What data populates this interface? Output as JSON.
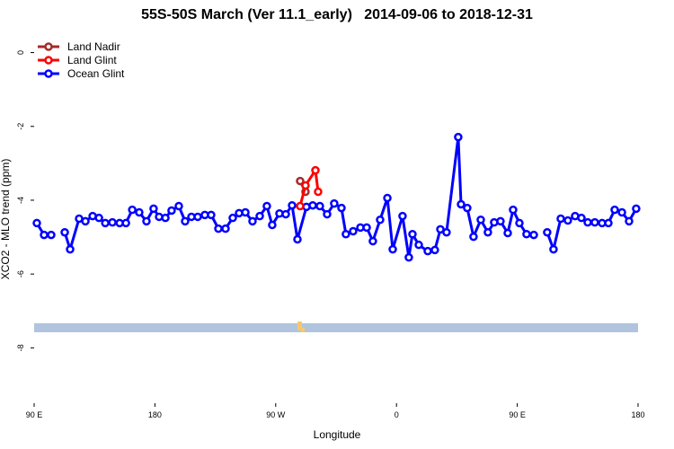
{
  "chart_data": {
    "type": "line",
    "title": "55S-50S March (Ver 11.1_early)   2014-09-06 to 2018-12-31",
    "x_label": "Longitude",
    "y_label": "XCO2 - MLO trend (ppm)",
    "xlim": [
      90,
      540
    ],
    "xticks": [
      {
        "value": 90,
        "label": "90 E"
      },
      180,
      {
        "value": 270,
        "label": "90 W"
      },
      {
        "value": 360,
        "label": "0"
      },
      {
        "value": 450,
        "label": "90 E"
      },
      {
        "value": 540,
        "label": "180"
      }
    ],
    "ylim": [
      -9.5,
      0.5
    ],
    "yticks": [
      0,
      -2,
      -4,
      -6,
      -8
    ],
    "legend": "top-left",
    "series": [
      {
        "name": "Land Nadir",
        "color": "#a52a2a",
        "x": [
          288.2,
          292.2
        ],
        "values": [
          -3.48,
          -3.77
        ]
      },
      {
        "name": "Land Glint",
        "color": "#ff0000",
        "x": [
          288.2,
          292.2,
          299.6,
          301.6
        ],
        "values": [
          -4.16,
          -3.6,
          -3.19,
          -3.77
        ]
      },
      {
        "name": "Ocean Glint",
        "color": "#0000ff",
        "x": [
          92.0,
          97.4,
          102.7,
          107.7,
          112.8,
          116.8,
          123.5,
          128.2,
          133.6,
          138.3,
          143.0,
          148.3,
          153.7,
          158.4,
          163.1,
          168.3,
          173.7,
          179.0,
          183.1,
          187.8,
          192.4,
          197.8,
          202.5,
          207.2,
          211.9,
          217.2,
          221.9,
          227.3,
          232.6,
          238.0,
          242.7,
          247.4,
          252.7,
          258.1,
          263.4,
          267.4,
          272.8,
          277.5,
          282.2,
          286.2,
          292.9,
          297.6,
          302.9,
          308.3,
          313.6,
          319.0,
          322.3,
          327.7,
          333.1,
          337.8,
          342.4,
          347.8,
          353.2,
          357.2,
          364.5,
          369.2,
          371.9,
          376.6,
          383.3,
          388.6,
          392.7,
          397.3,
          406.0,
          408.1,
          412.7,
          417.4,
          422.8,
          428.1,
          432.8,
          437.5,
          442.9,
          446.9,
          451.6,
          456.9,
          462.3,
          467.3,
          472.3,
          477.0,
          482.4,
          487.7,
          493.1,
          497.8,
          502.5,
          507.8,
          513.2,
          517.9,
          522.6,
          528.0,
          533.3,
          538.6
        ],
        "values": [
          -4.62,
          -4.94,
          -4.94,
          null,
          -4.87,
          -5.33,
          -4.5,
          -4.57,
          -4.43,
          -4.48,
          -4.62,
          -4.6,
          -4.62,
          -4.62,
          -4.26,
          -4.33,
          -4.57,
          -4.23,
          -4.45,
          -4.48,
          -4.28,
          -4.16,
          -4.57,
          -4.45,
          -4.45,
          -4.4,
          -4.4,
          -4.77,
          -4.77,
          -4.48,
          -4.35,
          -4.33,
          -4.57,
          -4.43,
          -4.16,
          -4.67,
          -4.36,
          -4.38,
          -4.14,
          -5.06,
          -4.18,
          -4.14,
          -4.16,
          -4.38,
          -4.09,
          -4.21,
          -4.92,
          -4.84,
          -4.74,
          -4.74,
          -5.11,
          -4.53,
          -3.94,
          -5.33,
          -4.43,
          -5.55,
          -4.92,
          -5.21,
          -5.38,
          -5.35,
          -4.79,
          -4.87,
          -2.29,
          -4.11,
          -4.21,
          -4.99,
          -4.53,
          -4.87,
          -4.6,
          -4.57,
          -4.89,
          -4.26,
          -4.62,
          -4.92,
          -4.94,
          null,
          -4.87,
          -5.33,
          -4.5,
          -4.55,
          -4.43,
          -4.48,
          -4.6,
          -4.6,
          -4.62,
          -4.62,
          -4.26,
          -4.33,
          -4.57,
          -4.23
        ]
      }
    ]
  }
}
